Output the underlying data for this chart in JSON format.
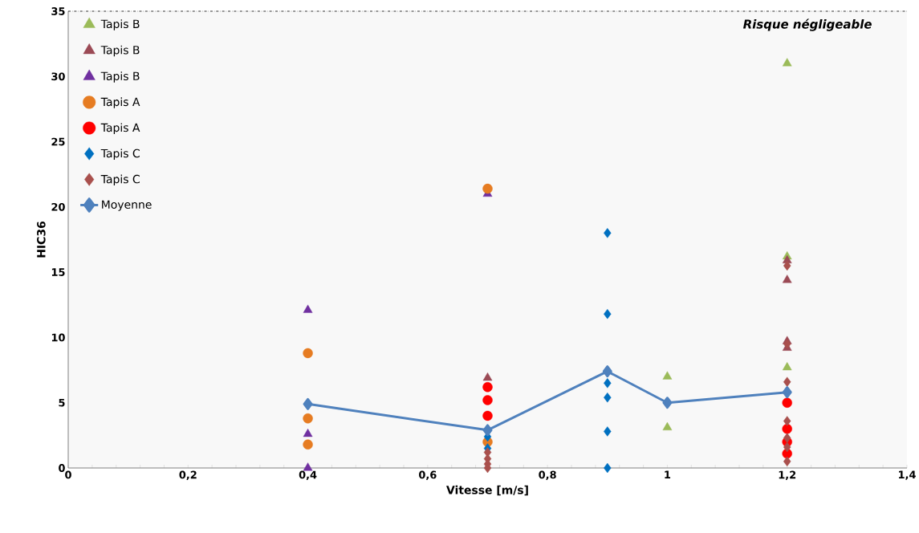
{
  "chart_data": {
    "type": "scatter",
    "xlabel": "Vitesse [m/s]",
    "ylabel": "HIC36",
    "xlim": [
      0,
      1.4
    ],
    "xticks": [
      0,
      {
        "value": 0.2,
        "label": "0,2"
      },
      {
        "value": 0.4,
        "label": "0,4"
      },
      {
        "value": 0.6,
        "label": "0,6"
      },
      {
        "value": 0.8,
        "label": "0,8"
      },
      1,
      {
        "value": 1.2,
        "label": "1,2"
      },
      {
        "value": 1.4,
        "label": "1,4"
      }
    ],
    "ylim": [
      0,
      35
    ],
    "yticks": [
      0,
      5,
      10,
      15,
      20,
      25,
      30,
      35
    ],
    "legend": "top left",
    "grid": false,
    "ref_lines": [
      {
        "axis": "y",
        "value": 35,
        "label": "Risque négligeable",
        "color": "#000000",
        "line_style": "dashed"
      }
    ],
    "series": [
      {
        "name": "Tapis B",
        "color": "#9bbb59",
        "marker": "triangle",
        "x": [
          1.2,
          1.2,
          1.2,
          1.0,
          1.0
        ],
        "values": [
          31.0,
          16.2,
          7.7,
          7.0,
          3.1
        ]
      },
      {
        "name": "Tapis B",
        "color": "#9b4a55",
        "marker": "triangle",
        "x": [
          0.7,
          1.2,
          1.2,
          1.2,
          1.2
        ],
        "values": [
          6.9,
          15.9,
          14.4,
          9.7,
          9.2
        ]
      },
      {
        "name": "Tapis B",
        "color": "#7030a0",
        "marker": "triangle",
        "x": [
          0.4,
          0.4,
          0.4,
          0.7
        ],
        "values": [
          12.1,
          2.6,
          0.0,
          21.0
        ]
      },
      {
        "name": "Tapis A",
        "color": "#e67c22",
        "marker": "circle",
        "x": [
          0.4,
          0.4,
          0.4,
          0.7,
          0.7
        ],
        "values": [
          8.8,
          3.8,
          1.8,
          21.4,
          2.0
        ]
      },
      {
        "name": "Tapis A",
        "color": "#ff0000",
        "marker": "circle",
        "x": [
          0.7,
          0.7,
          0.7,
          1.2,
          1.2,
          1.2,
          1.2
        ],
        "values": [
          6.2,
          5.2,
          4.0,
          5.0,
          3.0,
          2.0,
          1.1
        ]
      },
      {
        "name": "Tapis C",
        "color": "#0070c0",
        "marker": "diamond",
        "x": [
          0.7,
          0.7,
          0.9,
          0.9,
          0.9,
          0.9,
          0.9,
          0.9
        ],
        "values": [
          2.4,
          1.5,
          18.0,
          11.8,
          6.5,
          5.4,
          2.8,
          0.0
        ]
      },
      {
        "name": "Tapis C",
        "color": "#a9504d",
        "marker": "diamond",
        "x": [
          0.7,
          0.7,
          0.7,
          0.7,
          1.2,
          1.2,
          1.2,
          1.2,
          1.2,
          1.2,
          1.2
        ],
        "values": [
          1.2,
          0.7,
          0.3,
          0.0,
          15.5,
          9.5,
          6.6,
          3.6,
          2.3,
          1.6,
          0.5
        ]
      },
      {
        "name": "Moyenne",
        "type": "line",
        "color": "#4f81bd",
        "marker": "diamond",
        "line_style": "solid",
        "x": [
          0.4,
          0.7,
          0.9,
          1.0,
          1.2
        ],
        "values": [
          4.9,
          2.9,
          7.4,
          5.0,
          5.8
        ]
      }
    ]
  }
}
